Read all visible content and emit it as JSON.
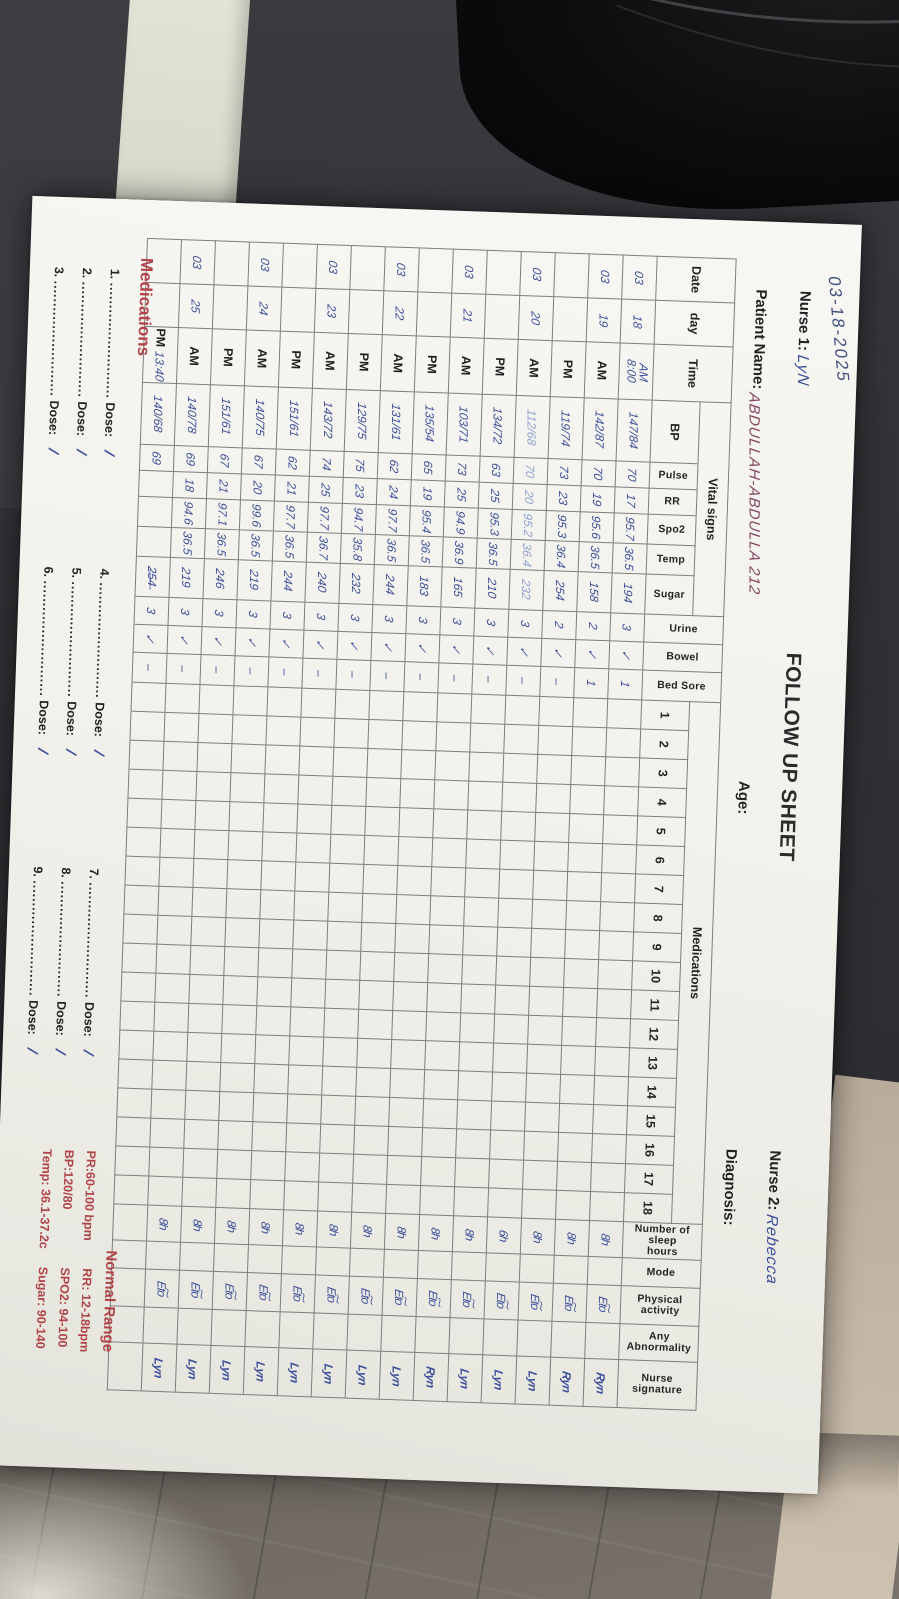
{
  "colors": {
    "accent_red": "#b04448",
    "ink_blue": "#3d4f9a",
    "ink_light_blue": "#8fa0cf",
    "ink_maroon": "#82455c",
    "paper": "#f2f1ec"
  },
  "photo_note": {
    "handwritten_corner_date": "03-18-2025"
  },
  "header": {
    "title": "FOLLOW UP SHEET",
    "nurse1_label": "Nurse 1:",
    "nurse1_value": "LyN",
    "nurse2_label": "Nurse 2:",
    "nurse2_value": "Rebecca",
    "patient_label": "Patient Name:",
    "patient_value": "ABDULLAH-ABDULLA 212",
    "age_label": "Age:",
    "age_value": "",
    "diagnosis_label": "Diagnosis:",
    "diagnosis_value": ""
  },
  "table": {
    "col_date": "Date",
    "col_day": "day",
    "col_time": "Time",
    "group_vitals": "Vital signs",
    "col_bp": "BP",
    "col_pulse": "Pulse",
    "col_rr": "RR",
    "col_spo2": "Spo2",
    "col_temp": "Temp",
    "col_sugar": "Sugar",
    "col_urine": "Urine",
    "col_bowel": "Bowel",
    "col_bedsore": "Bed Sore",
    "group_meds": "Medications",
    "med_numbers": [
      "1",
      "2",
      "3",
      "4",
      "5",
      "6",
      "7",
      "8",
      "9",
      "10",
      "11",
      "12",
      "13",
      "14",
      "15",
      "16",
      "17",
      "18"
    ],
    "col_sleep": "Number of sleep\nhours",
    "col_mode": "Mode",
    "col_activity": "Physical activity",
    "col_abnormality": "Any Abnormality",
    "col_signature": "Nurse signature",
    "rows": [
      {
        "date": "03",
        "day": "18",
        "time_print": "",
        "time_hand": "AM\n8:00",
        "bp": "147/84",
        "pulse": "70",
        "rr": "17",
        "spo2": "95.7",
        "temp": "36.5",
        "sugar": "194",
        "urine": "3",
        "bowel": "✓",
        "bedsore": "1",
        "sleep": "8h",
        "mode": "",
        "activity": "Et͠o",
        "abnormality": "",
        "signature": "Ryn",
        "ink": "normal"
      },
      {
        "date": "03",
        "day": "19",
        "time_print": "AM",
        "time_hand": "",
        "bp": "142/87",
        "pulse": "70",
        "rr": "19",
        "spo2": "95.6",
        "temp": "36.5",
        "sugar": "158",
        "urine": "2",
        "bowel": "✓",
        "bedsore": "1",
        "sleep": "8h",
        "mode": "",
        "activity": "Et͠o",
        "abnormality": "",
        "signature": "Ryn",
        "ink": "normal"
      },
      {
        "date": "",
        "day": "",
        "time_print": "PM",
        "time_hand": "",
        "bp": "119/74",
        "pulse": "73",
        "rr": "23",
        "spo2": "95.3",
        "temp": "36.4",
        "sugar": "254",
        "urine": "2",
        "bowel": "✓",
        "bedsore": "–",
        "sleep": "8h",
        "mode": "",
        "activity": "Et͠o",
        "abnormality": "",
        "signature": "Lyn",
        "ink": "normal"
      },
      {
        "date": "03",
        "day": "20",
        "time_print": "AM",
        "time_hand": "",
        "bp": "112/68",
        "pulse": "70",
        "rr": "20",
        "spo2": "95.2",
        "temp": "36.4",
        "sugar": "232",
        "urine": "3",
        "bowel": "✓",
        "bedsore": "–",
        "sleep": "6h",
        "mode": "",
        "activity": "Et͠o",
        "abnormality": "",
        "signature": "Lyn",
        "ink": "light"
      },
      {
        "date": "",
        "day": "",
        "time_print": "PM",
        "time_hand": "",
        "bp": "134/72",
        "pulse": "63",
        "rr": "25",
        "spo2": "95.3",
        "temp": "36.5",
        "sugar": "210",
        "urine": "3",
        "bowel": "✓",
        "bedsore": "–",
        "sleep": "8h",
        "mode": "",
        "activity": "Et͠o",
        "abnormality": "",
        "signature": "Lyn",
        "ink": "normal"
      },
      {
        "date": "03",
        "day": "21",
        "time_print": "AM",
        "time_hand": "",
        "bp": "103/71",
        "pulse": "73",
        "rr": "25",
        "spo2": "94.9",
        "temp": "36.9",
        "sugar": "165",
        "urine": "3",
        "bowel": "✓",
        "bedsore": "–",
        "sleep": "8h",
        "mode": "",
        "activity": "Et͠o",
        "abnormality": "",
        "signature": "Ryn",
        "ink": "normal"
      },
      {
        "date": "",
        "day": "",
        "time_print": "PM",
        "time_hand": "",
        "bp": "135/54",
        "pulse": "65",
        "rr": "19",
        "spo2": "95.4",
        "temp": "36.5",
        "sugar": "183",
        "urine": "3",
        "bowel": "✓",
        "bedsore": "–",
        "sleep": "8h",
        "mode": "",
        "activity": "Et͠o",
        "abnormality": "",
        "signature": "Lyn",
        "ink": "normal"
      },
      {
        "date": "03",
        "day": "22",
        "time_print": "AM",
        "time_hand": "",
        "bp": "131/61",
        "pulse": "62",
        "rr": "24",
        "spo2": "97.7",
        "temp": "36.5",
        "sugar": "244",
        "urine": "3",
        "bowel": "✓",
        "bedsore": "–",
        "sleep": "8h",
        "mode": "",
        "activity": "Et͠o",
        "abnormality": "",
        "signature": "Lyn",
        "ink": "normal"
      },
      {
        "date": "",
        "day": "",
        "time_print": "PM",
        "time_hand": "",
        "bp": "129/75",
        "pulse": "75",
        "rr": "23",
        "spo2": "94.7",
        "temp": "35.8",
        "sugar": "232",
        "urine": "3",
        "bowel": "✓",
        "bedsore": "–",
        "sleep": "8h",
        "mode": "",
        "activity": "Et͠o",
        "abnormality": "",
        "signature": "Lyn",
        "ink": "normal"
      },
      {
        "date": "03",
        "day": "23",
        "time_print": "AM",
        "time_hand": "",
        "bp": "143/72",
        "pulse": "74",
        "rr": "25",
        "spo2": "97.7",
        "temp": "36.7",
        "sugar": "240",
        "urine": "3",
        "bowel": "✓",
        "bedsore": "–",
        "sleep": "8h",
        "mode": "",
        "activity": "Et͠o",
        "abnormality": "",
        "signature": "Lyn",
        "ink": "normal"
      },
      {
        "date": "",
        "day": "",
        "time_print": "PM",
        "time_hand": "",
        "bp": "151/61",
        "pulse": "62",
        "rr": "21",
        "spo2": "97.7",
        "temp": "36.5",
        "sugar": "244",
        "urine": "3",
        "bowel": "✓",
        "bedsore": "–",
        "sleep": "8h",
        "mode": "",
        "activity": "Et͠o",
        "abnormality": "",
        "signature": "Lyn",
        "ink": "normal"
      },
      {
        "date": "03",
        "day": "24",
        "time_print": "AM",
        "time_hand": "",
        "bp": "140/75",
        "pulse": "67",
        "rr": "20",
        "spo2": "99.6",
        "temp": "36.5",
        "sugar": "219",
        "urine": "3",
        "bowel": "✓",
        "bedsore": "–",
        "sleep": "8h",
        "mode": "",
        "activity": "Et͠o",
        "abnormality": "",
        "signature": "Lyn",
        "ink": "normal"
      },
      {
        "date": "",
        "day": "",
        "time_print": "PM",
        "time_hand": "",
        "bp": "151/61",
        "pulse": "67",
        "rr": "21",
        "spo2": "97.1",
        "temp": "36.5",
        "sugar": "246",
        "urine": "3",
        "bowel": "✓",
        "bedsore": "–",
        "sleep": "8h",
        "mode": "",
        "activity": "Et͠o",
        "abnormality": "",
        "signature": "Lyn",
        "ink": "normal"
      },
      {
        "date": "03",
        "day": "25",
        "time_print": "AM",
        "time_hand": "",
        "bp": "140/78",
        "pulse": "69",
        "rr": "18",
        "spo2": "94.6",
        "temp": "36.5",
        "sugar": "219",
        "urine": "3",
        "bowel": "✓",
        "bedsore": "–",
        "sleep": "8h",
        "mode": "",
        "activity": "Et͠o",
        "abnormality": "",
        "signature": "Lyn",
        "ink": "normal"
      },
      {
        "date": "",
        "day": "",
        "time_print": "PM",
        "time_hand": "13:40",
        "bp": "140/68",
        "pulse": "69",
        "rr": "",
        "spo2": "",
        "temp": "",
        "sugar": "2̶5̶4̶",
        "urine": "3",
        "bowel": "✓",
        "bedsore": "–",
        "sleep": "",
        "mode": "",
        "activity": "",
        "abnormality": "",
        "signature": "",
        "ink": "normal"
      }
    ]
  },
  "medications_section": {
    "heading": "Medications",
    "dots": "..........................",
    "dose_label": "Dose:",
    "items": [
      {
        "num": "1.",
        "dose_value": "/"
      },
      {
        "num": "2.",
        "dose_value": "/"
      },
      {
        "num": "3.",
        "dose_value": "/"
      },
      {
        "num": "4.",
        "dose_value": "/"
      },
      {
        "num": "5.",
        "dose_value": "/"
      },
      {
        "num": "6.",
        "dose_value": "/"
      },
      {
        "num": "7.",
        "dose_value": "/"
      },
      {
        "num": "8.",
        "dose_value": "/"
      },
      {
        "num": "9.",
        "dose_value": "/"
      }
    ]
  },
  "normal_range": {
    "heading": "Normal Range",
    "left": [
      "PR:60-100 bpm",
      "BP:120/80",
      "Temp: 36.1-37.2c"
    ],
    "right": [
      "RR: 12-18bpm",
      "SPO2: 94-100",
      "Sugar: 90-140"
    ]
  }
}
